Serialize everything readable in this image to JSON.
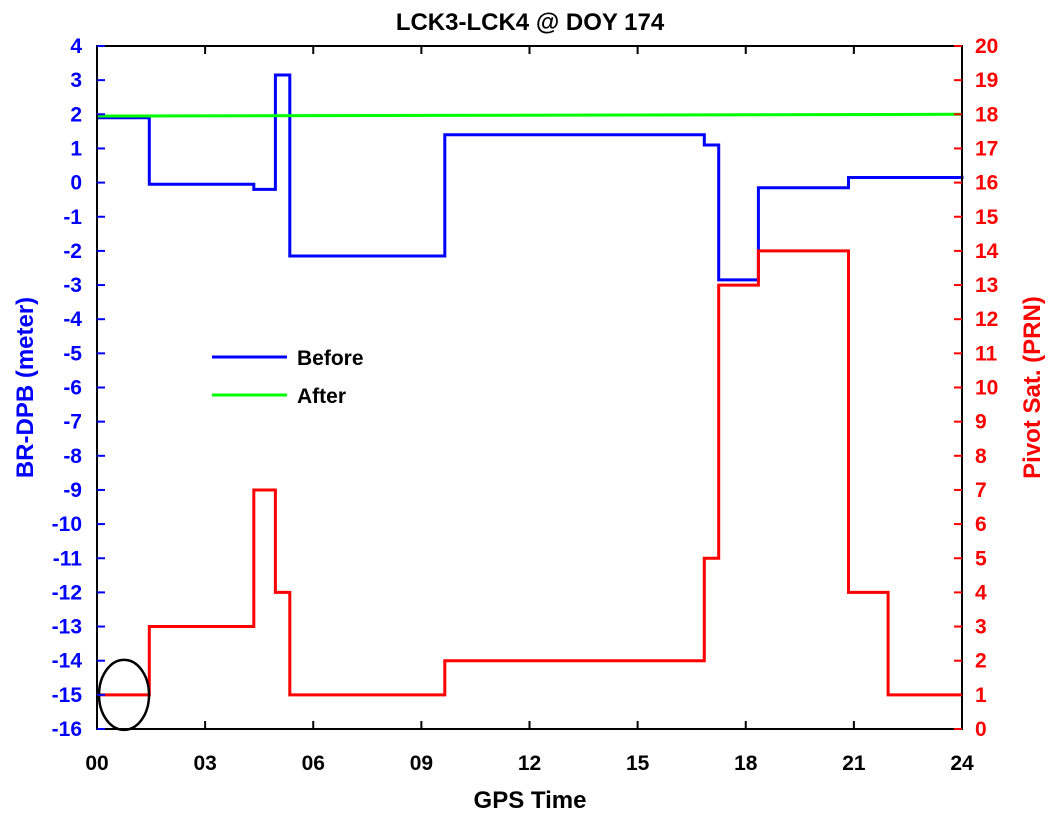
{
  "chart_data": {
    "type": "line",
    "title": "LCK3-LCK4 @ DOY 174",
    "xlabel": "GPS Time",
    "ylabel_left": "BR-DPB (meter)",
    "ylabel_right": "Pivot Sat. (PRN)",
    "x_ticks": [
      "00",
      "03",
      "06",
      "09",
      "12",
      "15",
      "18",
      "21",
      "24"
    ],
    "xlim": [
      0,
      24
    ],
    "ylim_left": [
      -16,
      4
    ],
    "ylim_right": [
      0,
      20
    ],
    "left_ticks": [
      "4",
      "3",
      "2",
      "1",
      "0",
      "-1",
      "-2",
      "-3",
      "-4",
      "-5",
      "-6",
      "-7",
      "-8",
      "-9",
      "-10",
      "-11",
      "-12",
      "-13",
      "-14",
      "-15",
      "-16"
    ],
    "right_ticks": [
      "20",
      "19",
      "18",
      "17",
      "16",
      "15",
      "14",
      "13",
      "12",
      "11",
      "10",
      "9",
      "8",
      "7",
      "6",
      "5",
      "4",
      "3",
      "2",
      "1",
      "0"
    ],
    "grid": false,
    "legend_position": "center-left",
    "colors": {
      "before": "#0000ff",
      "after": "#00ff00",
      "pivot": "#ff0000",
      "left_axis": "#0000ff",
      "right_axis": "#ff0000"
    },
    "series": [
      {
        "name": "Before",
        "axis": "left",
        "step": true,
        "x": [
          0,
          1.45,
          4.35,
          4.95,
          5.35,
          9.65,
          16.85,
          17.25,
          18.35,
          20.85,
          24
        ],
        "y": [
          1.9,
          -0.05,
          -0.2,
          3.15,
          -2.15,
          1.4,
          1.1,
          -2.85,
          -0.15,
          0.15,
          0.2
        ]
      },
      {
        "name": "After",
        "axis": "left",
        "step": false,
        "x": [
          0,
          24
        ],
        "y": [
          1.95,
          2.0
        ]
      },
      {
        "axis": "right",
        "step": true,
        "x": [
          0,
          1.45,
          4.35,
          4.95,
          5.35,
          9.65,
          16.85,
          17.25,
          18.35,
          20.85,
          21.95,
          24
        ],
        "y": [
          1,
          3,
          7,
          4,
          1,
          2,
          5,
          13,
          14,
          4,
          1,
          1
        ]
      }
    ],
    "annotations": [
      {
        "type": "ellipse",
        "x_center": 0.75,
        "y_right": 1
      }
    ]
  }
}
